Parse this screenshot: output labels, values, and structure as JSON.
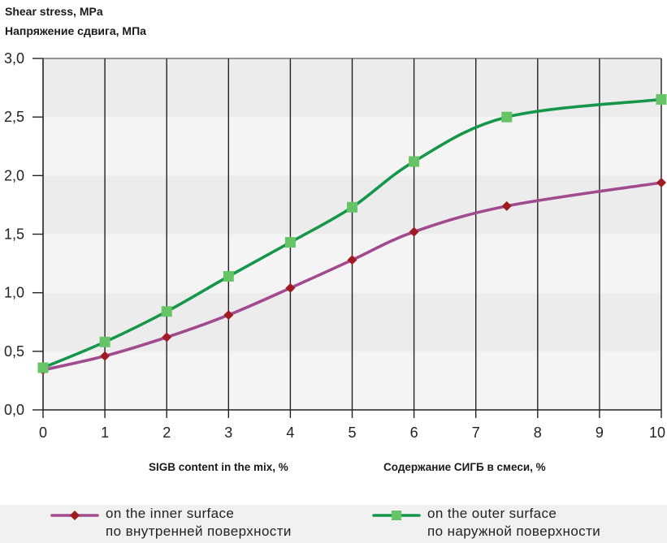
{
  "y_title_en": "Shear stress, MPa",
  "y_title_ru": "Напряжение сдвига, МПа",
  "xlabel_en": "SIGB content in the mix, %",
  "xlabel_ru": "Содержание СИГБ в смеси, %",
  "chart_data": {
    "type": "line",
    "x_ticks": [
      0,
      1,
      2,
      3,
      4,
      5,
      6,
      7,
      8,
      9,
      10
    ],
    "x_tick_labels": [
      "0",
      "1",
      "2",
      "3",
      "4",
      "5",
      "6",
      "7",
      "8",
      "9",
      "10"
    ],
    "y_ticks": [
      0,
      0.5,
      1.0,
      1.5,
      2.0,
      2.5,
      3.0
    ],
    "y_tick_labels": [
      "0,0",
      "0,5",
      "1,0",
      "1,5",
      "2,0",
      "2,5",
      "3,0"
    ],
    "xlim": [
      0,
      10
    ],
    "ylim": [
      0,
      3.0
    ],
    "grid": "vertical",
    "legend_position": "bottom",
    "xlabel": "SIGB content in the mix, %",
    "ylabel": "Shear stress, MPa",
    "series": [
      {
        "name_en": "on the inner surface",
        "name_ru": "по внутренней поверхности",
        "color": "#a24a8e",
        "marker": "diamond",
        "marker_color": "#a01c22",
        "x": [
          0,
          1,
          2,
          3,
          4,
          5,
          6,
          7.5,
          10
        ],
        "y": [
          0.34,
          0.46,
          0.62,
          0.81,
          1.04,
          1.28,
          1.52,
          1.74,
          1.94
        ]
      },
      {
        "name_en": "on the outer surface",
        "name_ru": "по наружной поверхности",
        "color": "#16964a",
        "marker": "square",
        "marker_color": "#66c466",
        "x": [
          0,
          1,
          2,
          3,
          4,
          5,
          6,
          7.5,
          10
        ],
        "y": [
          0.36,
          0.58,
          0.84,
          1.14,
          1.43,
          1.73,
          2.12,
          2.5,
          2.65
        ]
      }
    ]
  }
}
